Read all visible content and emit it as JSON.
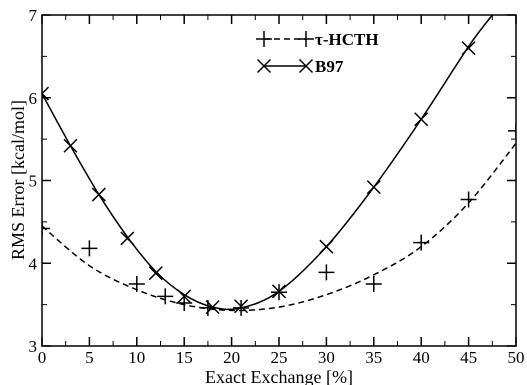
{
  "chart_data": {
    "type": "line",
    "xlabel": "Exact Exchange [%]",
    "ylabel": "RMS Error [kcal/mol]",
    "xlim": [
      0,
      50
    ],
    "ylim": [
      3,
      7
    ],
    "xticks": [
      "0",
      "5",
      "10",
      "15",
      "20",
      "25",
      "30",
      "35",
      "40",
      "45",
      "50"
    ],
    "yticks": [
      "3",
      "4",
      "5",
      "6",
      "7"
    ],
    "grid": false,
    "legend_position": "top-center",
    "series": [
      {
        "name": "τ-HCTH",
        "marker": "plus",
        "line_style": "dashed",
        "color": "#000000",
        "points": [
          [
            0,
            4.42
          ],
          [
            5,
            4.18
          ],
          [
            10,
            3.75
          ],
          [
            13,
            3.6
          ],
          [
            15,
            3.52
          ],
          [
            17.5,
            3.46
          ],
          [
            21,
            3.46
          ],
          [
            25,
            3.65
          ],
          [
            30,
            3.89
          ],
          [
            35,
            3.75
          ],
          [
            40,
            4.25
          ],
          [
            45,
            4.77
          ],
          [
            50,
            5.6
          ]
        ],
        "fit": [
          [
            0,
            4.45
          ],
          [
            5,
            3.97
          ],
          [
            10,
            3.68
          ],
          [
            15,
            3.5
          ],
          [
            20,
            3.43
          ],
          [
            25,
            3.47
          ],
          [
            30,
            3.62
          ],
          [
            35,
            3.86
          ],
          [
            40,
            4.2
          ],
          [
            45,
            4.73
          ],
          [
            50,
            5.45
          ]
        ]
      },
      {
        "name": "B97",
        "marker": "cross",
        "line_style": "solid",
        "color": "#000000",
        "points": [
          [
            0,
            6.05
          ],
          [
            3,
            5.42
          ],
          [
            6,
            4.83
          ],
          [
            9,
            4.3
          ],
          [
            12,
            3.88
          ],
          [
            15,
            3.6
          ],
          [
            18,
            3.47
          ],
          [
            21,
            3.48
          ],
          [
            25,
            3.66
          ],
          [
            30,
            4.2
          ],
          [
            35,
            4.92
          ],
          [
            40,
            5.74
          ],
          [
            45,
            6.6
          ]
        ],
        "fit": [
          [
            0,
            6.05
          ],
          [
            3,
            5.42
          ],
          [
            6,
            4.83
          ],
          [
            9,
            4.32
          ],
          [
            12,
            3.9
          ],
          [
            15,
            3.62
          ],
          [
            18,
            3.47
          ],
          [
            21,
            3.46
          ],
          [
            25,
            3.66
          ],
          [
            30,
            4.2
          ],
          [
            35,
            4.92
          ],
          [
            40,
            5.74
          ],
          [
            45,
            6.62
          ],
          [
            47.5,
            7.0
          ]
        ]
      }
    ]
  }
}
